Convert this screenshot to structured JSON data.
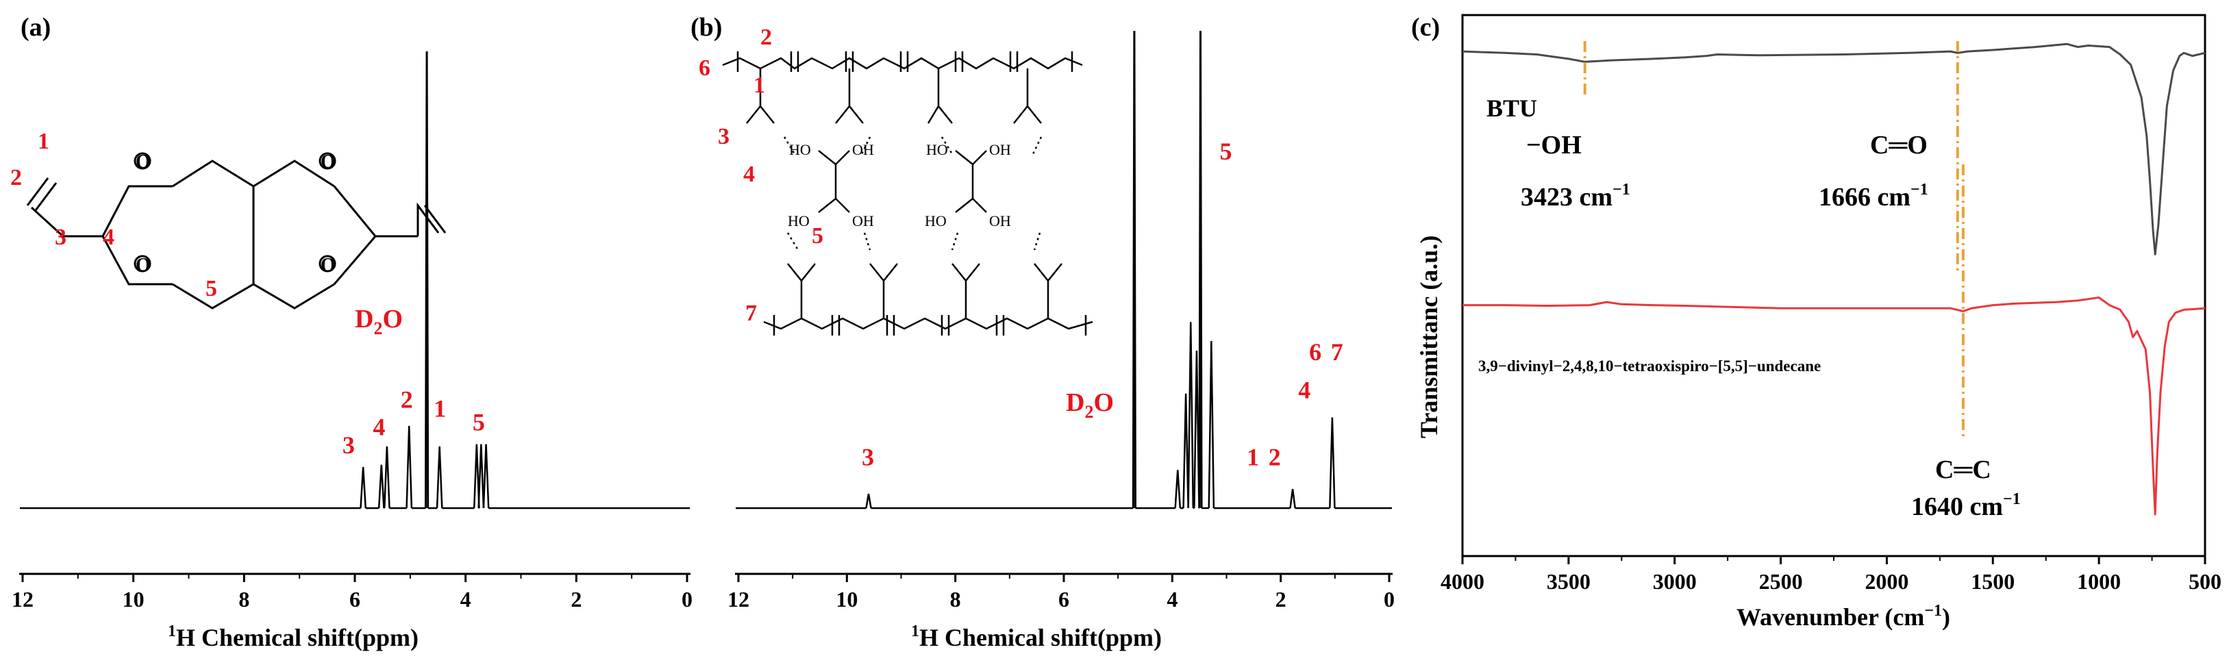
{
  "chart_data": [
    {
      "panel": "(a)",
      "type": "line",
      "xlabel_sup": "1",
      "xlabel_main": "H Chemical shift(ppm)",
      "xlim": [
        12,
        0
      ],
      "xticks": [
        12,
        10,
        8,
        6,
        4,
        2,
        0
      ],
      "peaks": [
        {
          "x": 5.85,
          "h": 0.09
        },
        {
          "x": 5.52,
          "h": 0.095
        },
        {
          "x": 5.42,
          "h": 0.135
        },
        {
          "x": 5.02,
          "h": 0.18
        },
        {
          "x": 4.7,
          "h": 1.0
        },
        {
          "x": 4.47,
          "h": 0.135
        },
        {
          "x": 3.8,
          "h": 0.14
        },
        {
          "x": 3.72,
          "h": 0.14
        },
        {
          "x": 3.63,
          "h": 0.14
        }
      ],
      "peak_labels": [
        {
          "text": "3",
          "x": 6.1,
          "h": 0.12
        },
        {
          "text": "4",
          "x": 5.55,
          "h": 0.16
        },
        {
          "text": "2",
          "x": 5.05,
          "h": 0.22
        },
        {
          "text": "1",
          "x": 4.45,
          "h": 0.2
        },
        {
          "text": "5",
          "x": 3.75,
          "h": 0.17
        }
      ],
      "solvent_main": "D",
      "solvent_sub": "2",
      "solvent_tail": "O",
      "structure_labels": [
        "1",
        "2",
        "3",
        "4",
        "5"
      ]
    },
    {
      "panel": "(b)",
      "type": "line",
      "xlabel_sup": "1",
      "xlabel_main": "H Chemical shift(ppm)",
      "xlim": [
        12,
        0
      ],
      "xticks": [
        12,
        10,
        8,
        6,
        4,
        2,
        0
      ],
      "peaks": [
        {
          "x": 9.6,
          "h": 0.03
        },
        {
          "x": 4.7,
          "h": 1.0
        },
        {
          "x": 3.9,
          "h": 0.08
        },
        {
          "x": 3.75,
          "h": 0.24
        },
        {
          "x": 3.66,
          "h": 0.39
        },
        {
          "x": 3.55,
          "h": 0.33
        },
        {
          "x": 3.48,
          "h": 1.0
        },
        {
          "x": 3.28,
          "h": 0.35
        },
        {
          "x": 1.78,
          "h": 0.04
        },
        {
          "x": 1.05,
          "h": 0.19
        }
      ],
      "peak_labels": [
        {
          "text": "3",
          "x": 9.6,
          "h": 0.09
        },
        {
          "text": "5",
          "x": 3.0,
          "h": 0.73
        },
        {
          "text": "1",
          "x": 2.5,
          "h": 0.09
        },
        {
          "text": "2",
          "x": 2.1,
          "h": 0.09
        },
        {
          "text": "4",
          "x": 1.55,
          "h": 0.23
        },
        {
          "text": "6",
          "x": 1.35,
          "h": 0.31
        },
        {
          "text": "7",
          "x": 0.95,
          "h": 0.31
        }
      ],
      "solvent_main": "D",
      "solvent_sub": "2",
      "solvent_tail": "O",
      "structure_labels": [
        "1",
        "2",
        "3",
        "4",
        "5",
        "6",
        "7"
      ]
    },
    {
      "panel": "(c)",
      "type": "line",
      "xlabel": "Wavenumber (cm",
      "xlabel_sup": "−1",
      "xlabel_tail": ")",
      "ylabel": "Transmittanc (a.u.)",
      "xlim": [
        4000,
        500
      ],
      "xticks": [
        4000,
        3500,
        3000,
        2500,
        2000,
        1500,
        1000,
        500
      ],
      "series": [
        {
          "name": "BTU",
          "color": "#4a4a4a",
          "x": [
            4000,
            3800,
            3650,
            3500,
            3423,
            3300,
            3100,
            2950,
            2850,
            2800,
            2600,
            2200,
            1900,
            1700,
            1666,
            1620,
            1500,
            1400,
            1300,
            1150,
            1100,
            1050,
            950,
            900,
            850,
            800,
            775,
            760,
            745,
            735,
            720,
            700,
            680,
            650,
            620,
            600,
            560,
            530,
            500
          ],
          "y": [
            0.985,
            0.98,
            0.975,
            0.96,
            0.95,
            0.955,
            0.96,
            0.965,
            0.97,
            0.975,
            0.972,
            0.975,
            0.98,
            0.985,
            0.98,
            0.985,
            0.99,
            0.995,
            1.0,
            1.01,
            1.0,
            1.005,
            1.0,
            0.975,
            0.94,
            0.83,
            0.7,
            0.55,
            0.38,
            0.3,
            0.4,
            0.6,
            0.8,
            0.92,
            0.97,
            0.98,
            0.97,
            0.975,
            0.98
          ]
        },
        {
          "name": "3,9−divinyl−2,4,8,10−tetraoxispiro−[5,5]−undecane",
          "color": "#e8383d",
          "x": [
            4000,
            3800,
            3600,
            3400,
            3320,
            3250,
            3100,
            2950,
            2800,
            2500,
            2200,
            1900,
            1700,
            1640,
            1600,
            1500,
            1400,
            1200,
            1100,
            1050,
            1000,
            950,
            900,
            860,
            840,
            820,
            780,
            760,
            745,
            735,
            725,
            710,
            690,
            670,
            640,
            600,
            550,
            500
          ],
          "y": [
            0.985,
            0.985,
            0.983,
            0.985,
            0.995,
            0.988,
            0.985,
            0.983,
            0.98,
            0.975,
            0.975,
            0.975,
            0.975,
            0.965,
            0.975,
            0.985,
            0.99,
            0.995,
            1.0,
            1.005,
            1.01,
            0.985,
            0.97,
            0.93,
            0.88,
            0.9,
            0.84,
            0.7,
            0.45,
            0.3,
            0.5,
            0.7,
            0.85,
            0.93,
            0.96,
            0.97,
            0.972,
            0.975
          ]
        }
      ],
      "annotations": [
        {
          "text": "−OH",
          "line2": "3423 cm",
          "sup": "−1"
        },
        {
          "text": "C═O",
          "line2": "1666 cm",
          "sup": "−1"
        },
        {
          "text": "C═C",
          "line2": "1640 cm",
          "sup": "−1"
        }
      ],
      "series_label_1": "BTU",
      "series_label_2": "3,9−divinyl−2,4,8,10−tetraoxispiro−[5,5]−undecane",
      "accent_color": "#e8a33b"
    }
  ]
}
